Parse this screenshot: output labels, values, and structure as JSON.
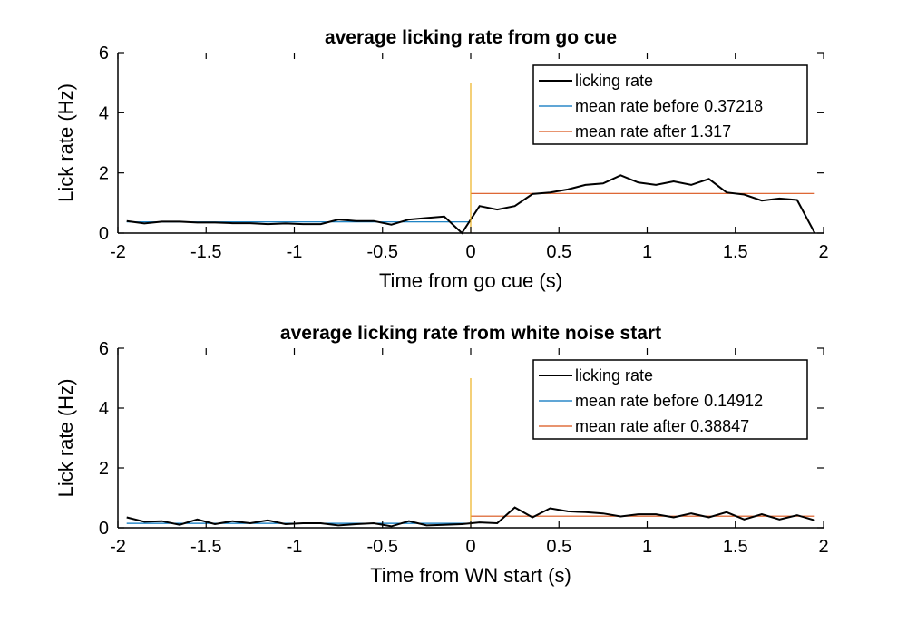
{
  "chart_data": [
    {
      "type": "line",
      "title": "average licking rate from go cue",
      "xlabel": "Time from go cue (s)",
      "ylabel": "Lick rate (Hz)",
      "xlim": [
        -2,
        2
      ],
      "ylim": [
        0,
        6
      ],
      "xticks": [
        "-2",
        "-1.5",
        "-1",
        "-0.5",
        "0",
        "0.5",
        "1",
        "1.5",
        "2"
      ],
      "yticks": [
        "0",
        "2",
        "4",
        "6"
      ],
      "legend_position": "top-right",
      "series": [
        {
          "name": "licking rate",
          "color": "#000000",
          "x": [
            -1.95,
            -1.85,
            -1.75,
            -1.65,
            -1.55,
            -1.45,
            -1.35,
            -1.25,
            -1.15,
            -1.05,
            -0.95,
            -0.85,
            -0.75,
            -0.65,
            -0.55,
            -0.45,
            -0.35,
            -0.25,
            -0.15,
            -0.05,
            0.05,
            0.15,
            0.25,
            0.35,
            0.45,
            0.55,
            0.65,
            0.75,
            0.85,
            0.95,
            1.05,
            1.15,
            1.25,
            1.35,
            1.45,
            1.55,
            1.65,
            1.75,
            1.85,
            1.95
          ],
          "y": [
            0.4,
            0.32,
            0.38,
            0.38,
            0.35,
            0.35,
            0.33,
            0.33,
            0.3,
            0.32,
            0.3,
            0.3,
            0.45,
            0.4,
            0.4,
            0.28,
            0.45,
            0.5,
            0.55,
            0.0,
            0.9,
            0.78,
            0.9,
            1.3,
            1.35,
            1.45,
            1.6,
            1.65,
            1.92,
            1.68,
            1.6,
            1.72,
            1.6,
            1.8,
            1.35,
            1.28,
            1.08,
            1.15,
            1.1,
            0.0
          ]
        },
        {
          "name": "mean rate before 0.37218",
          "color": "#0072BD",
          "x": [
            -1.95,
            0.0
          ],
          "y": [
            0.37218,
            0.37218
          ]
        },
        {
          "name": "mean rate after 1.317",
          "color": "#D95319",
          "x": [
            0.0,
            1.95
          ],
          "y": [
            1.317,
            1.317
          ]
        },
        {
          "name": "",
          "color": "#EDB120",
          "x": [
            0.0,
            0.0
          ],
          "y": [
            0,
            5
          ]
        }
      ]
    },
    {
      "type": "line",
      "title": "average licking rate from white noise start",
      "xlabel": "Time from WN start (s)",
      "ylabel": "Lick rate (Hz)",
      "xlim": [
        -2,
        2
      ],
      "ylim": [
        0,
        6
      ],
      "xticks": [
        "-2",
        "-1.5",
        "-1",
        "-0.5",
        "0",
        "0.5",
        "1",
        "1.5",
        "2"
      ],
      "yticks": [
        "0",
        "2",
        "4",
        "6"
      ],
      "legend_position": "top-right",
      "series": [
        {
          "name": "licking rate",
          "color": "#000000",
          "x": [
            -1.95,
            -1.85,
            -1.75,
            -1.65,
            -1.55,
            -1.45,
            -1.35,
            -1.25,
            -1.15,
            -1.05,
            -0.95,
            -0.85,
            -0.75,
            -0.65,
            -0.55,
            -0.45,
            -0.35,
            -0.25,
            -0.15,
            -0.05,
            0.05,
            0.15,
            0.25,
            0.35,
            0.45,
            0.55,
            0.65,
            0.75,
            0.85,
            0.95,
            1.05,
            1.15,
            1.25,
            1.35,
            1.45,
            1.55,
            1.65,
            1.75,
            1.85,
            1.95
          ],
          "y": [
            0.35,
            0.2,
            0.22,
            0.1,
            0.28,
            0.12,
            0.22,
            0.15,
            0.25,
            0.12,
            0.15,
            0.15,
            0.08,
            0.12,
            0.15,
            0.05,
            0.22,
            0.08,
            0.1,
            0.12,
            0.18,
            0.15,
            0.68,
            0.35,
            0.65,
            0.55,
            0.52,
            0.48,
            0.38,
            0.45,
            0.45,
            0.35,
            0.48,
            0.35,
            0.52,
            0.28,
            0.45,
            0.28,
            0.42,
            0.25
          ]
        },
        {
          "name": "mean rate before 0.14912",
          "color": "#0072BD",
          "x": [
            -1.95,
            0.0
          ],
          "y": [
            0.14912,
            0.14912
          ]
        },
        {
          "name": "mean rate after 0.38847",
          "color": "#D95319",
          "x": [
            0.0,
            1.95
          ],
          "y": [
            0.38847,
            0.38847
          ]
        },
        {
          "name": "",
          "color": "#EDB120",
          "x": [
            0.0,
            0.0
          ],
          "y": [
            0,
            5
          ]
        }
      ]
    }
  ]
}
